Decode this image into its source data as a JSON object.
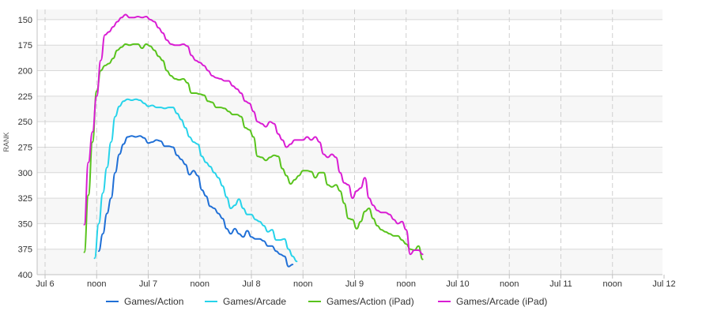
{
  "chart_data": {
    "type": "line",
    "title": "",
    "ylabel": "RANK",
    "y_reversed": true,
    "ylim": [
      400,
      140
    ],
    "y_ticks": [
      150,
      175,
      200,
      225,
      250,
      275,
      300,
      325,
      350,
      375,
      400
    ],
    "x_ticks": [
      {
        "t": 0,
        "label": "Jul 6"
      },
      {
        "t": 0.5,
        "label": "noon"
      },
      {
        "t": 1,
        "label": "Jul 7"
      },
      {
        "t": 1.5,
        "label": "noon"
      },
      {
        "t": 2,
        "label": "Jul 8"
      },
      {
        "t": 2.5,
        "label": "noon"
      },
      {
        "t": 3,
        "label": "Jul 9"
      },
      {
        "t": 3.5,
        "label": "noon"
      },
      {
        "t": 4,
        "label": "Jul 10"
      },
      {
        "t": 4.5,
        "label": "noon"
      },
      {
        "t": 5,
        "label": "Jul 11"
      },
      {
        "t": 5.5,
        "label": "noon"
      },
      {
        "t": 6,
        "label": "Jul 12"
      }
    ],
    "xlim": [
      0,
      6
    ],
    "grid": true,
    "legend_position": "bottom",
    "series": [
      {
        "name": "Games/Action",
        "color": "#1f6fd6",
        "points": [
          [
            0.52,
            377
          ],
          [
            0.56,
            360
          ],
          [
            0.6,
            340
          ],
          [
            0.64,
            325
          ],
          [
            0.68,
            300
          ],
          [
            0.72,
            282
          ],
          [
            0.76,
            272
          ],
          [
            0.8,
            265
          ],
          [
            0.84,
            264
          ],
          [
            0.88,
            265
          ],
          [
            0.92,
            264
          ],
          [
            0.96,
            266
          ],
          [
            1.0,
            271
          ],
          [
            1.04,
            270
          ],
          [
            1.08,
            268
          ],
          [
            1.12,
            269
          ],
          [
            1.16,
            274
          ],
          [
            1.2,
            274
          ],
          [
            1.24,
            275
          ],
          [
            1.28,
            283
          ],
          [
            1.32,
            287
          ],
          [
            1.36,
            292
          ],
          [
            1.4,
            302
          ],
          [
            1.44,
            298
          ],
          [
            1.48,
            303
          ],
          [
            1.52,
            317
          ],
          [
            1.56,
            323
          ],
          [
            1.6,
            333
          ],
          [
            1.64,
            335
          ],
          [
            1.68,
            340
          ],
          [
            1.72,
            345
          ],
          [
            1.76,
            355
          ],
          [
            1.8,
            360
          ],
          [
            1.84,
            355
          ],
          [
            1.88,
            360
          ],
          [
            1.92,
            363
          ],
          [
            1.96,
            357
          ],
          [
            2.0,
            363
          ],
          [
            2.04,
            365
          ],
          [
            2.08,
            365
          ],
          [
            2.12,
            367
          ],
          [
            2.16,
            372
          ],
          [
            2.2,
            372
          ],
          [
            2.24,
            377
          ],
          [
            2.28,
            380
          ],
          [
            2.32,
            382
          ],
          [
            2.36,
            392
          ],
          [
            2.4,
            390
          ]
        ]
      },
      {
        "name": "Games/Arcade",
        "color": "#26d3ea",
        "points": [
          [
            0.48,
            384
          ],
          [
            0.52,
            350
          ],
          [
            0.56,
            320
          ],
          [
            0.6,
            295
          ],
          [
            0.64,
            270
          ],
          [
            0.68,
            245
          ],
          [
            0.72,
            235
          ],
          [
            0.76,
            230
          ],
          [
            0.8,
            228
          ],
          [
            0.84,
            229
          ],
          [
            0.88,
            228
          ],
          [
            0.92,
            229
          ],
          [
            0.96,
            232
          ],
          [
            1.0,
            235
          ],
          [
            1.04,
            234
          ],
          [
            1.08,
            236
          ],
          [
            1.12,
            236
          ],
          [
            1.16,
            237
          ],
          [
            1.2,
            236
          ],
          [
            1.24,
            236
          ],
          [
            1.28,
            242
          ],
          [
            1.32,
            248
          ],
          [
            1.36,
            256
          ],
          [
            1.4,
            265
          ],
          [
            1.44,
            270
          ],
          [
            1.48,
            272
          ],
          [
            1.52,
            284
          ],
          [
            1.56,
            290
          ],
          [
            1.6,
            294
          ],
          [
            1.64,
            300
          ],
          [
            1.68,
            305
          ],
          [
            1.72,
            313
          ],
          [
            1.76,
            324
          ],
          [
            1.8,
            335
          ],
          [
            1.84,
            332
          ],
          [
            1.88,
            326
          ],
          [
            1.92,
            335
          ],
          [
            1.96,
            341
          ],
          [
            2.0,
            341
          ],
          [
            2.04,
            346
          ],
          [
            2.08,
            348
          ],
          [
            2.12,
            352
          ],
          [
            2.16,
            358
          ],
          [
            2.2,
            356
          ],
          [
            2.24,
            366
          ],
          [
            2.28,
            366
          ],
          [
            2.32,
            365
          ],
          [
            2.36,
            375
          ],
          [
            2.4,
            382
          ],
          [
            2.44,
            387
          ]
        ]
      },
      {
        "name": "Games/Action (iPad)",
        "color": "#58c31c",
        "points": [
          [
            0.38,
            378
          ],
          [
            0.42,
            322
          ],
          [
            0.46,
            270
          ],
          [
            0.5,
            220
          ],
          [
            0.54,
            200
          ],
          [
            0.58,
            195
          ],
          [
            0.62,
            193
          ],
          [
            0.66,
            188
          ],
          [
            0.7,
            180
          ],
          [
            0.74,
            177
          ],
          [
            0.78,
            174
          ],
          [
            0.82,
            175
          ],
          [
            0.86,
            174
          ],
          [
            0.9,
            174
          ],
          [
            0.94,
            178
          ],
          [
            0.98,
            174
          ],
          [
            1.02,
            176
          ],
          [
            1.06,
            180
          ],
          [
            1.1,
            186
          ],
          [
            1.14,
            190
          ],
          [
            1.18,
            200
          ],
          [
            1.22,
            205
          ],
          [
            1.26,
            208
          ],
          [
            1.3,
            209
          ],
          [
            1.34,
            208
          ],
          [
            1.38,
            212
          ],
          [
            1.42,
            222
          ],
          [
            1.46,
            222
          ],
          [
            1.5,
            223
          ],
          [
            1.54,
            224
          ],
          [
            1.58,
            230
          ],
          [
            1.62,
            231
          ],
          [
            1.66,
            236
          ],
          [
            1.7,
            236
          ],
          [
            1.74,
            237
          ],
          [
            1.78,
            240
          ],
          [
            1.82,
            243
          ],
          [
            1.86,
            243
          ],
          [
            1.9,
            245
          ],
          [
            1.94,
            256
          ],
          [
            1.98,
            258
          ],
          [
            2.02,
            265
          ],
          [
            2.06,
            284
          ],
          [
            2.1,
            285
          ],
          [
            2.14,
            288
          ],
          [
            2.18,
            285
          ],
          [
            2.22,
            283
          ],
          [
            2.26,
            284
          ],
          [
            2.3,
            296
          ],
          [
            2.34,
            303
          ],
          [
            2.38,
            311
          ],
          [
            2.42,
            307
          ],
          [
            2.46,
            303
          ],
          [
            2.5,
            298
          ],
          [
            2.54,
            298
          ],
          [
            2.58,
            299
          ],
          [
            2.62,
            305
          ],
          [
            2.66,
            300
          ],
          [
            2.7,
            300
          ],
          [
            2.74,
            312
          ],
          [
            2.78,
            314
          ],
          [
            2.82,
            312
          ],
          [
            2.86,
            318
          ],
          [
            2.9,
            330
          ],
          [
            2.94,
            345
          ],
          [
            2.98,
            346
          ],
          [
            3.02,
            355
          ],
          [
            3.06,
            348
          ],
          [
            3.1,
            338
          ],
          [
            3.14,
            335
          ],
          [
            3.18,
            345
          ],
          [
            3.22,
            352
          ],
          [
            3.26,
            356
          ],
          [
            3.3,
            358
          ],
          [
            3.34,
            360
          ],
          [
            3.38,
            362
          ],
          [
            3.42,
            362
          ],
          [
            3.46,
            366
          ],
          [
            3.5,
            370
          ],
          [
            3.54,
            375
          ],
          [
            3.58,
            376
          ],
          [
            3.62,
            372
          ],
          [
            3.66,
            385
          ]
        ]
      },
      {
        "name": "Games/Arcade (iPad)",
        "color": "#d91dd3",
        "points": [
          [
            0.38,
            351
          ],
          [
            0.42,
            290
          ],
          [
            0.46,
            260
          ],
          [
            0.5,
            225
          ],
          [
            0.54,
            190
          ],
          [
            0.58,
            165
          ],
          [
            0.62,
            162
          ],
          [
            0.66,
            157
          ],
          [
            0.7,
            152
          ],
          [
            0.74,
            148
          ],
          [
            0.78,
            145
          ],
          [
            0.82,
            148
          ],
          [
            0.86,
            148
          ],
          [
            0.9,
            147
          ],
          [
            0.94,
            148
          ],
          [
            0.98,
            147
          ],
          [
            1.02,
            150
          ],
          [
            1.06,
            152
          ],
          [
            1.1,
            158
          ],
          [
            1.14,
            163
          ],
          [
            1.18,
            170
          ],
          [
            1.22,
            174
          ],
          [
            1.26,
            175
          ],
          [
            1.3,
            175
          ],
          [
            1.34,
            174
          ],
          [
            1.38,
            176
          ],
          [
            1.42,
            185
          ],
          [
            1.46,
            190
          ],
          [
            1.5,
            192
          ],
          [
            1.54,
            195
          ],
          [
            1.58,
            200
          ],
          [
            1.62,
            205
          ],
          [
            1.66,
            207
          ],
          [
            1.7,
            208
          ],
          [
            1.74,
            210
          ],
          [
            1.78,
            210
          ],
          [
            1.82,
            215
          ],
          [
            1.86,
            218
          ],
          [
            1.9,
            222
          ],
          [
            1.94,
            230
          ],
          [
            1.98,
            232
          ],
          [
            2.02,
            240
          ],
          [
            2.06,
            250
          ],
          [
            2.1,
            252
          ],
          [
            2.14,
            255
          ],
          [
            2.18,
            250
          ],
          [
            2.22,
            252
          ],
          [
            2.26,
            262
          ],
          [
            2.3,
            268
          ],
          [
            2.34,
            275
          ],
          [
            2.38,
            272
          ],
          [
            2.42,
            268
          ],
          [
            2.46,
            268
          ],
          [
            2.5,
            268
          ],
          [
            2.54,
            265
          ],
          [
            2.58,
            268
          ],
          [
            2.62,
            265
          ],
          [
            2.66,
            270
          ],
          [
            2.7,
            282
          ],
          [
            2.74,
            285
          ],
          [
            2.78,
            282
          ],
          [
            2.82,
            285
          ],
          [
            2.86,
            300
          ],
          [
            2.9,
            310
          ],
          [
            2.94,
            312
          ],
          [
            2.98,
            325
          ],
          [
            3.02,
            318
          ],
          [
            3.06,
            315
          ],
          [
            3.1,
            305
          ],
          [
            3.14,
            325
          ],
          [
            3.18,
            332
          ],
          [
            3.22,
            337
          ],
          [
            3.26,
            339
          ],
          [
            3.3,
            339
          ],
          [
            3.34,
            341
          ],
          [
            3.38,
            346
          ],
          [
            3.42,
            350
          ],
          [
            3.46,
            348
          ],
          [
            3.5,
            356
          ],
          [
            3.54,
            380
          ],
          [
            3.58,
            376
          ],
          [
            3.62,
            376
          ],
          [
            3.66,
            380
          ]
        ]
      }
    ]
  }
}
